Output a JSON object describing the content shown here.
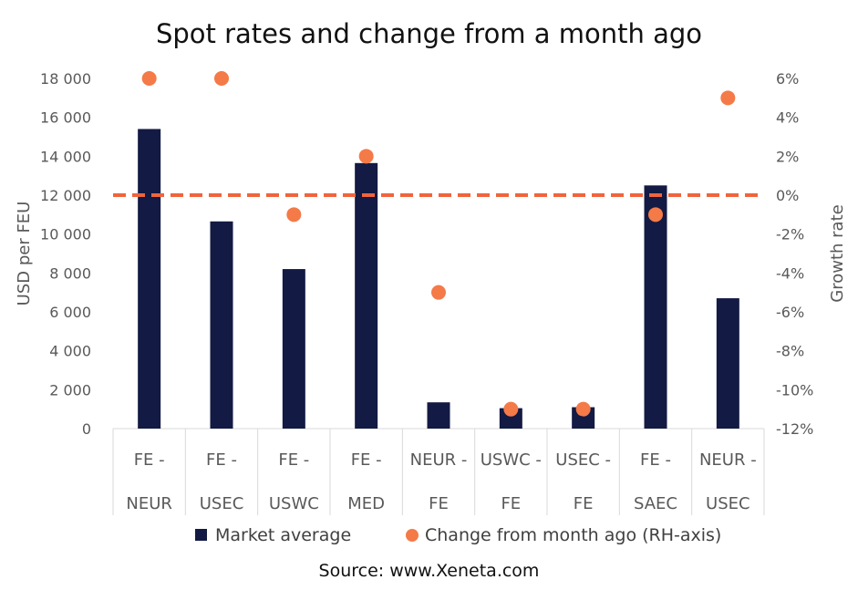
{
  "chart_data": {
    "type": "bar",
    "title": "Spot rates and change from a month ago",
    "source": "Source: www.Xeneta.com",
    "categories": [
      [
        "FE -",
        "NEUR"
      ],
      [
        "FE -",
        "USEC"
      ],
      [
        "FE -",
        "USWC"
      ],
      [
        "FE -",
        "MED"
      ],
      [
        "NEUR -",
        "FE"
      ],
      [
        "USWC -",
        "FE"
      ],
      [
        "USEC -",
        "FE"
      ],
      [
        "FE -",
        "SAEC"
      ],
      [
        "NEUR -",
        "USEC"
      ]
    ],
    "series": [
      {
        "name": "Market average",
        "type": "bar",
        "axis": "left",
        "color": "#131a43",
        "values": [
          15400,
          10650,
          8200,
          13650,
          1350,
          1050,
          1100,
          12500,
          6700
        ]
      },
      {
        "name": "Change from month ago (RH-axis)",
        "type": "scatter",
        "axis": "right",
        "color": "#f47a48",
        "values": [
          6,
          6,
          -1,
          2,
          -5,
          -11,
          -11,
          -1,
          5
        ]
      }
    ],
    "ylabel": "USD per FEU",
    "ylim": [
      0,
      18000
    ],
    "yticks": [
      "18 000",
      "16 000",
      "14 000",
      "12 000",
      "10 000",
      "8 000",
      "6 000",
      "4 000",
      "2 000",
      "0"
    ],
    "y2label": "Growth rate",
    "y2lim": [
      -12,
      6
    ],
    "y2ticks": [
      "6%",
      "4%",
      "2%",
      "0%",
      "-2%",
      "-4%",
      "-6%",
      "-8%",
      "-10%",
      "-12%"
    ],
    "reference_line": {
      "axis": "right",
      "value": 0,
      "style": "dashed",
      "color": "#f0643c"
    },
    "grid": false,
    "legend_position": "bottom"
  }
}
